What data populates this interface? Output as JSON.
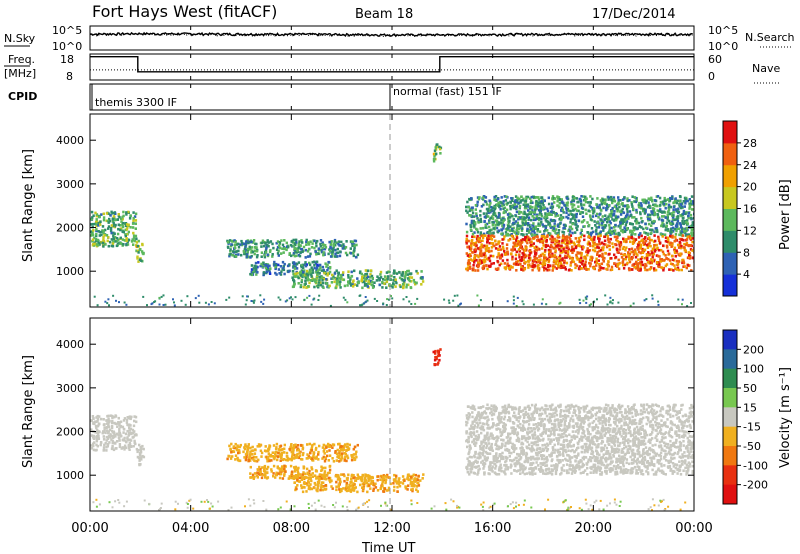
{
  "header": {
    "station": "Fort Hays West (fitACF)",
    "beam": "Beam 18",
    "date": "17/Dec/2014"
  },
  "sky_panel": {
    "left_label": "N.Sky",
    "left_ticks": [
      "10^5",
      "10^0"
    ],
    "right_label": "N.Search",
    "right_ticks": [
      "10^5",
      "10^0"
    ]
  },
  "freq_panel": {
    "left_label_1": "Freq.",
    "left_label_2": "[MHz]",
    "left_ticks": [
      "18",
      "8"
    ],
    "right_label": "Nave",
    "right_ticks": [
      "60",
      "0"
    ]
  },
  "cpid_panel": {
    "label": "CPID",
    "mode_1": "themis 3300 IF",
    "mode_2": "normal (fast) 151 IF"
  },
  "time_axis": {
    "label": "Time UT",
    "ticks": [
      "00:00",
      "04:00",
      "08:00",
      "12:00",
      "16:00",
      "20:00",
      "00:00"
    ]
  },
  "range_axis": {
    "label": "Slant Range [km]",
    "ticks": [
      "1000",
      "2000",
      "3000",
      "4000"
    ]
  },
  "power_scale": {
    "label": "Power [dB]",
    "ticks": [
      "4",
      "8",
      "12",
      "16",
      "20",
      "24",
      "28"
    ],
    "colors": [
      "#1530d8",
      "#2e62b4",
      "#2e8c6a",
      "#5cb85c",
      "#c8c820",
      "#f0a000",
      "#f06010",
      "#e01010"
    ]
  },
  "velocity_scale": {
    "label": "Velocity [m s⁻¹]",
    "ticks": [
      "200",
      "100",
      "50",
      "15",
      "-15",
      "-50",
      "-100",
      "-200"
    ],
    "colors": [
      "#1a2fc0",
      "#2a6a9a",
      "#2e8c50",
      "#78c850",
      "#c8c8c0",
      "#f0b020",
      "#f07810",
      "#e83010",
      "#e01010"
    ]
  },
  "chart_data": [
    {
      "type": "line",
      "title": "N.Sky / N.Search",
      "x_range_hours": [
        0,
        24
      ],
      "y_scale": "log",
      "series": [
        {
          "name": "N.Sky",
          "x": [
            0,
            2,
            4,
            6,
            8,
            10,
            12,
            14,
            16,
            18,
            20,
            22,
            24
          ],
          "values": [
            3000,
            4000,
            3500,
            3000,
            3000,
            2500,
            2000,
            2000,
            2500,
            3000,
            3000,
            3000,
            3000
          ]
        },
        {
          "name": "N.Search",
          "x": [
            0,
            2,
            4,
            6,
            8,
            10,
            12,
            14,
            16,
            18,
            20,
            22,
            24
          ],
          "values": [
            2000,
            3000,
            2500,
            2000,
            2000,
            1500,
            1500,
            1500,
            2000,
            2000,
            2000,
            2000,
            2000
          ]
        }
      ]
    },
    {
      "type": "line",
      "title": "Freq. / Nave",
      "x_range_hours": [
        0,
        24
      ],
      "series": [
        {
          "name": "Freq.",
          "units": "MHz",
          "ylim": [
            8,
            18
          ],
          "x": [
            0,
            1.9,
            1.9,
            13.9,
            13.9,
            24
          ],
          "values": [
            17.7,
            17.7,
            10.8,
            10.8,
            17.7,
            17.7
          ]
        },
        {
          "name": "Nave",
          "ylim": [
            0,
            60
          ],
          "x": [
            0,
            1.9,
            1.9,
            13.9,
            13.9,
            24
          ],
          "values": [
            22,
            22,
            22,
            22,
            22,
            22
          ]
        }
      ]
    },
    {
      "type": "table",
      "title": "CPID",
      "columns": [
        "start_hour",
        "mode"
      ],
      "rows": [
        [
          0,
          "themis 3300 IF"
        ],
        [
          11.9,
          "normal (fast) 151 IF"
        ]
      ]
    },
    {
      "type": "heatmap",
      "title": "Power [dB]",
      "xlabel": "Time UT",
      "ylabel": "Slant Range [km]",
      "x_range_hours": [
        0,
        24
      ],
      "ylim_km": [
        180,
        4600
      ],
      "zlim": [
        0,
        30
      ],
      "echo_regions": [
        {
          "t_start": 0.0,
          "t_end": 1.8,
          "r_low": 1550,
          "r_high": 2350,
          "power": 12
        },
        {
          "t_start": 1.8,
          "t_end": 2.1,
          "r_low": 1200,
          "r_high": 1700,
          "power": 14
        },
        {
          "t_start": 5.4,
          "t_end": 10.6,
          "r_low": 1300,
          "r_high": 1700,
          "power": 10
        },
        {
          "t_start": 6.3,
          "t_end": 9.5,
          "r_low": 900,
          "r_high": 1200,
          "power": 8
        },
        {
          "t_start": 8.0,
          "t_end": 13.2,
          "r_low": 600,
          "r_high": 1000,
          "power": 12
        },
        {
          "t_start": 13.6,
          "t_end": 13.9,
          "r_low": 3500,
          "r_high": 3900,
          "power": 14
        },
        {
          "t_start": 14.9,
          "t_end": 24.0,
          "r_low": 1800,
          "r_high": 2700,
          "power": 10
        },
        {
          "t_start": 14.9,
          "t_end": 24.0,
          "r_low": 1000,
          "r_high": 1800,
          "power": 24
        }
      ]
    },
    {
      "type": "heatmap",
      "title": "Velocity [m s⁻¹]",
      "xlabel": "Time UT",
      "ylabel": "Slant Range [km]",
      "x_range_hours": [
        0,
        24
      ],
      "ylim_km": [
        180,
        4600
      ],
      "zlim": [
        -250,
        250
      ],
      "echo_regions": [
        {
          "t_start": 0.0,
          "t_end": 1.8,
          "r_low": 1550,
          "r_high": 2350,
          "velocity": 0
        },
        {
          "t_start": 1.8,
          "t_end": 2.1,
          "r_low": 1200,
          "r_high": 1700,
          "velocity": 0
        },
        {
          "t_start": 5.4,
          "t_end": 10.6,
          "r_low": 1300,
          "r_high": 1700,
          "velocity": -40
        },
        {
          "t_start": 6.3,
          "t_end": 9.5,
          "r_low": 900,
          "r_high": 1200,
          "velocity": -40
        },
        {
          "t_start": 8.0,
          "t_end": 13.2,
          "r_low": 600,
          "r_high": 1000,
          "velocity": -40
        },
        {
          "t_start": 13.6,
          "t_end": 13.9,
          "r_low": 3500,
          "r_high": 3900,
          "velocity": -200
        },
        {
          "t_start": 14.9,
          "t_end": 24.0,
          "r_low": 1000,
          "r_high": 2600,
          "velocity": 0
        }
      ]
    }
  ]
}
